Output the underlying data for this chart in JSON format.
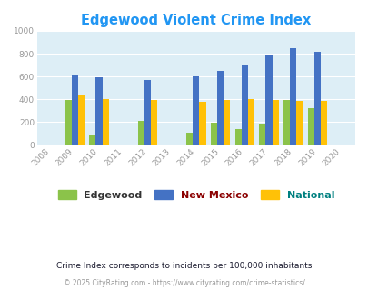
{
  "title": "Edgewood Violent Crime Index",
  "years": [
    2008,
    2009,
    2010,
    2011,
    2012,
    2013,
    2014,
    2015,
    2016,
    2017,
    2018,
    2019,
    2020
  ],
  "data_years": [
    2009,
    2010,
    2012,
    2014,
    2015,
    2016,
    2017,
    2018,
    2019
  ],
  "edgewood": [
    390,
    85,
    210,
    105,
    190,
    135,
    185,
    390,
    320
  ],
  "new_mexico": [
    615,
    595,
    565,
    600,
    650,
    700,
    790,
    850,
    820
  ],
  "national": [
    430,
    405,
    395,
    380,
    395,
    400,
    395,
    385,
    385
  ],
  "edgewood_color": "#8bc34a",
  "new_mexico_color": "#4472c4",
  "national_color": "#ffc107",
  "fig_bg_color": "#ffffff",
  "plot_bg_color": "#ddeef6",
  "ylim": [
    0,
    1000
  ],
  "yticks": [
    0,
    200,
    400,
    600,
    800,
    1000
  ],
  "subtitle": "Crime Index corresponds to incidents per 100,000 inhabitants",
  "footer": "© 2025 CityRating.com - https://www.cityrating.com/crime-statistics/",
  "bar_width": 0.27,
  "title_color": "#2196f3",
  "subtitle_color": "#1a1a2e",
  "footer_color": "#999999",
  "legend_labels": [
    "Edgewood",
    "New Mexico",
    "National"
  ],
  "legend_text_colors": [
    "#333333",
    "#8b0000",
    "#008080"
  ],
  "tick_label_color": "#999999"
}
